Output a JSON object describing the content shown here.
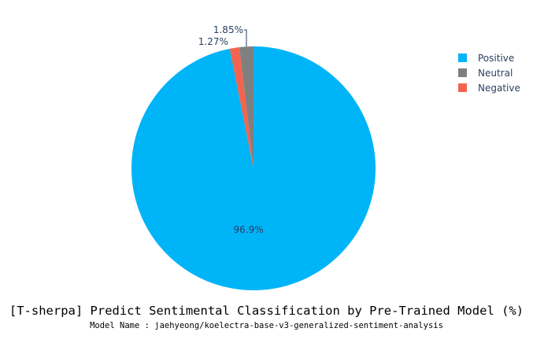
{
  "chart_data": {
    "type": "pie",
    "title": "[T-sherpa] Predict Sentimental Classification by Pre-Trained Model (%)",
    "subtitle": "Model Name : jaehyeong/koelectra-base-v3-generalized-sentiment-analysis",
    "legend_position": "top-right",
    "slices": [
      {
        "name": "Positive",
        "value": 96.9,
        "label": "96.9%",
        "color": "#00b4f8"
      },
      {
        "name": "Negative",
        "value": 1.27,
        "label": "1.27%",
        "color": "#f3644f"
      },
      {
        "name": "Neutral",
        "value": 1.85,
        "label": "1.85%",
        "color": "#7f7f7f"
      }
    ],
    "legend_order": [
      "Positive",
      "Neutral",
      "Negative"
    ]
  }
}
